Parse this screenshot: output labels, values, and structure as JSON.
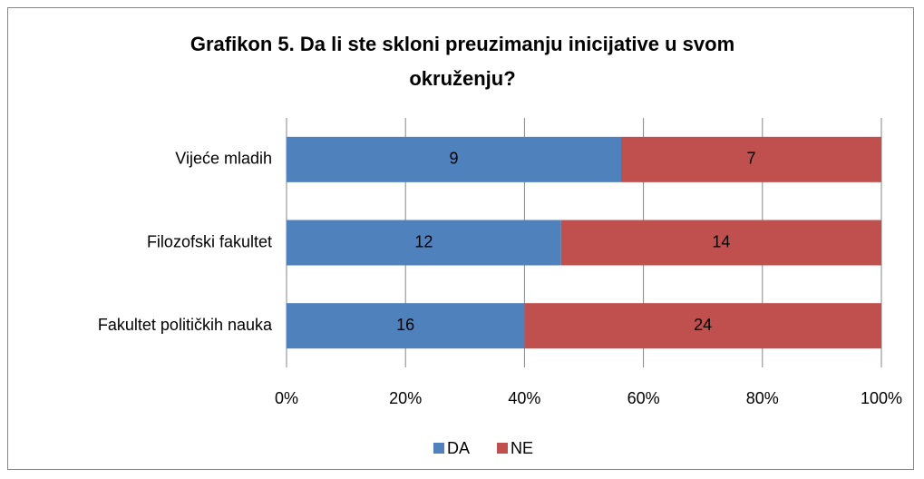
{
  "chart_data": {
    "type": "bar",
    "orientation": "horizontal",
    "stacking": "percent",
    "title": "Grafikon 5. Da li ste skloni preuzimanju inicijative u svom okruženju?",
    "categories": [
      "Vijeće mladih",
      "Filozofski fakultet",
      "Fakultet političkih nauka"
    ],
    "series": [
      {
        "name": "DA",
        "color": "#4f81bd",
        "values": [
          9,
          12,
          16
        ]
      },
      {
        "name": "NE",
        "color": "#c0504d",
        "values": [
          7,
          14,
          24
        ]
      }
    ],
    "xlim": [
      0,
      100
    ],
    "xticks": [
      {
        "value": 0,
        "label": "0%"
      },
      {
        "value": 20,
        "label": "20%"
      },
      {
        "value": 40,
        "label": "40%"
      },
      {
        "value": 60,
        "label": "60%"
      },
      {
        "value": 80,
        "label": "80%"
      },
      {
        "value": 100,
        "label": "100%"
      }
    ],
    "grid": true,
    "legend": "bottom"
  }
}
